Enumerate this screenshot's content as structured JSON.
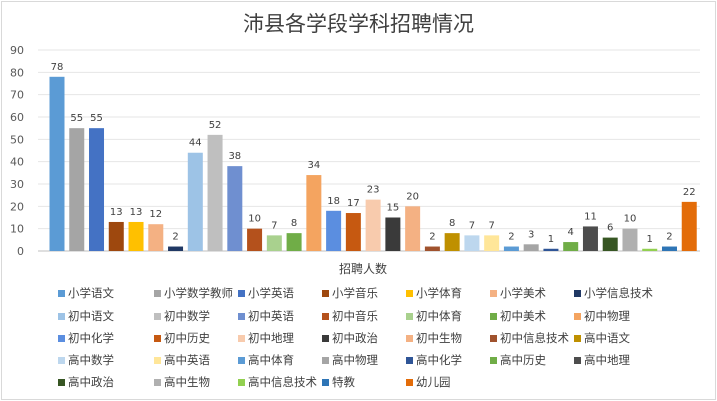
{
  "chart_data": {
    "type": "bar",
    "title": "沛县各学段学科招聘情况",
    "xlabel": "招聘人数",
    "ylabel": "",
    "ylim": [
      0,
      90
    ],
    "yticks": [
      0,
      10,
      20,
      30,
      40,
      50,
      60,
      70,
      80,
      90
    ],
    "grid": true,
    "legend_position": "bottom",
    "series": [
      {
        "name": "小学语文",
        "value": 78,
        "color": "#5b9bd5"
      },
      {
        "name": "小学数学教师",
        "value": 55,
        "color": "#a5a5a5"
      },
      {
        "name": "小学英语",
        "value": 55,
        "color": "#4472c4"
      },
      {
        "name": "小学音乐",
        "value": 13,
        "color": "#9e480e"
      },
      {
        "name": "小学体育",
        "value": 13,
        "color": "#ffc000"
      },
      {
        "name": "小学美术",
        "value": 12,
        "color": "#f4b183"
      },
      {
        "name": "小学信息技术",
        "value": 2,
        "color": "#203864"
      },
      {
        "name": "初中语文",
        "value": 44,
        "color": "#9dc3e6"
      },
      {
        "name": "初中数学",
        "value": 52,
        "color": "#bfbfbf"
      },
      {
        "name": "初中英语",
        "value": 38,
        "color": "#6f8fd0"
      },
      {
        "name": "初中音乐",
        "value": 10,
        "color": "#b4511c"
      },
      {
        "name": "初中体育",
        "value": 7,
        "color": "#a9d18e"
      },
      {
        "name": "初中美术",
        "value": 8,
        "color": "#70ad47"
      },
      {
        "name": "初中物理",
        "value": 34,
        "color": "#f4a460"
      },
      {
        "name": "初中化学",
        "value": 18,
        "color": "#5b8ee0"
      },
      {
        "name": "初中历史",
        "value": 17,
        "color": "#c65911"
      },
      {
        "name": "初中地理",
        "value": 23,
        "color": "#f8cbad"
      },
      {
        "name": "初中政治",
        "value": 15,
        "color": "#3a3a3a"
      },
      {
        "name": "初中生物",
        "value": 20,
        "color": "#f4b183"
      },
      {
        "name": "初中信息技术",
        "value": 2,
        "color": "#a0522d"
      },
      {
        "name": "高中语文",
        "value": 8,
        "color": "#bf9000"
      },
      {
        "name": "高中数学",
        "value": 7,
        "color": "#bdd7ee"
      },
      {
        "name": "高中英语",
        "value": 7,
        "color": "#ffe699"
      },
      {
        "name": "高中体育",
        "value": 2,
        "color": "#5b9bd5"
      },
      {
        "name": "高中物理",
        "value": 3,
        "color": "#a5a5a5"
      },
      {
        "name": "高中化学",
        "value": 1,
        "color": "#2f5597"
      },
      {
        "name": "高中历史",
        "value": 4,
        "color": "#70ad47"
      },
      {
        "name": "高中地理",
        "value": 11,
        "color": "#4d4d4d"
      },
      {
        "name": "高中政治",
        "value": 6,
        "color": "#375623"
      },
      {
        "name": "高中生物",
        "value": 10,
        "color": "#b0b0b0"
      },
      {
        "name": "高中信息技术",
        "value": 1,
        "color": "#92d050"
      },
      {
        "name": "特教",
        "value": 2,
        "color": "#2e75b6"
      },
      {
        "name": "幼儿园",
        "value": 22,
        "color": "#e36c09"
      }
    ]
  }
}
